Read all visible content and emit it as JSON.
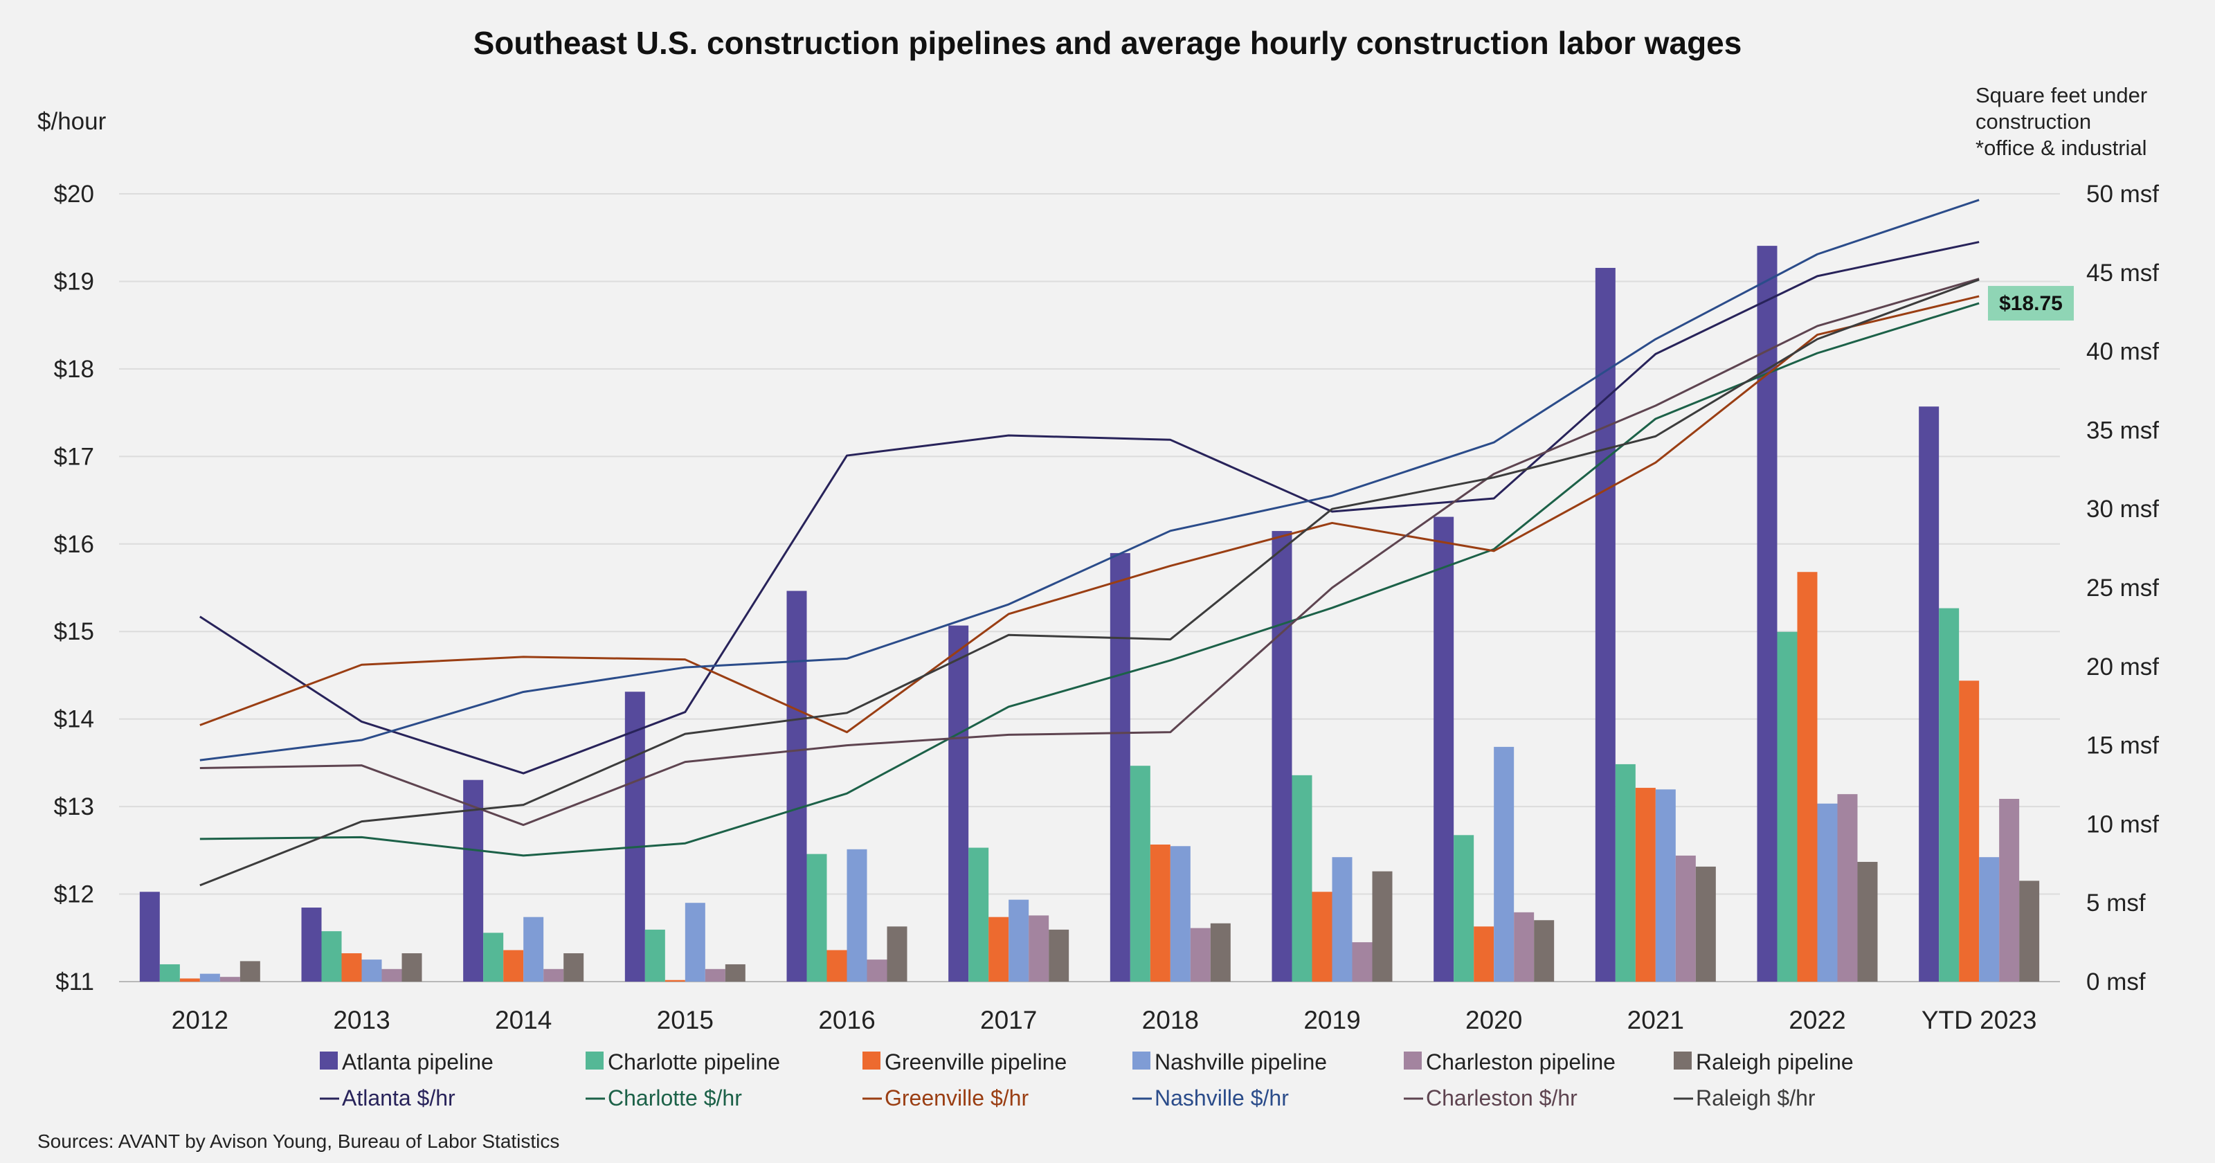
{
  "chart_data": {
    "type": "bar",
    "title": "Southeast U.S. construction pipelines and average hourly construction labor wages",
    "left_axis": {
      "label": "$/hour",
      "range": [
        11,
        20
      ],
      "ticks": [
        "$11",
        "$12",
        "$13",
        "$14",
        "$15",
        "$16",
        "$17",
        "$18",
        "$19",
        "$20"
      ]
    },
    "right_axis": {
      "label_lines": [
        "Square feet under",
        "construction",
        "*office & industrial"
      ],
      "range": [
        0,
        50
      ],
      "ticks": [
        "0 msf",
        "5 msf",
        "10 msf",
        "15 msf",
        "20 msf",
        "25 msf",
        "30 msf",
        "35 msf",
        "40 msf",
        "45 msf",
        "50 msf"
      ]
    },
    "categories": [
      "2012",
      "2013",
      "2014",
      "2015",
      "2016",
      "2017",
      "2018",
      "2019",
      "2020",
      "2021",
      "2022",
      "YTD 2023"
    ],
    "bar_series": [
      {
        "name": "Atlanta pipeline",
        "color": "#564a9c",
        "values": [
          5.7,
          4.7,
          12.8,
          18.4,
          24.8,
          22.6,
          27.2,
          28.6,
          29.5,
          45.3,
          46.7,
          36.5
        ]
      },
      {
        "name": "Charlotte pipeline",
        "color": "#55b896",
        "values": [
          1.1,
          3.2,
          3.1,
          3.3,
          8.1,
          8.5,
          13.7,
          13.1,
          9.3,
          13.8,
          22.2,
          23.7
        ]
      },
      {
        "name": "Greenville pipeline",
        "color": "#ed6a2f",
        "values": [
          0.2,
          1.8,
          2.0,
          0.1,
          2.0,
          4.1,
          8.7,
          5.7,
          3.5,
          12.3,
          26.0,
          19.1
        ]
      },
      {
        "name": "Nashville pipeline",
        "color": "#7f9cd5",
        "values": [
          0.5,
          1.4,
          4.1,
          5.0,
          8.4,
          5.2,
          8.6,
          7.9,
          14.9,
          12.2,
          11.3,
          7.9
        ]
      },
      {
        "name": "Charleston pipeline",
        "color": "#a3849f",
        "values": [
          0.3,
          0.8,
          0.8,
          0.8,
          1.4,
          4.2,
          3.4,
          2.5,
          4.4,
          8.0,
          11.9,
          11.6
        ]
      },
      {
        "name": "Raleigh pipeline",
        "color": "#7a706c",
        "values": [
          1.3,
          1.8,
          1.8,
          1.1,
          3.5,
          3.3,
          3.7,
          7.0,
          3.9,
          7.3,
          7.6,
          6.4
        ]
      }
    ],
    "line_series": [
      {
        "name": "Atlanta $/hr",
        "color": "#28235a",
        "values": [
          15.17,
          13.97,
          13.38,
          14.08,
          17.01,
          17.24,
          17.19,
          16.37,
          16.52,
          18.17,
          19.06,
          19.45
        ]
      },
      {
        "name": "Charlotte $/hr",
        "color": "#1c6148",
        "values": [
          12.63,
          12.65,
          12.44,
          12.58,
          13.15,
          14.14,
          14.67,
          15.27,
          15.94,
          17.43,
          18.18,
          18.75
        ]
      },
      {
        "name": "Greenville $/hr",
        "color": "#9a3e13",
        "values": [
          13.93,
          14.62,
          14.71,
          14.68,
          13.85,
          15.2,
          15.75,
          16.24,
          15.92,
          16.93,
          18.39,
          18.83
        ]
      },
      {
        "name": "Nashville $/hr",
        "color": "#2b4c8a",
        "values": [
          13.53,
          13.76,
          14.31,
          14.59,
          14.69,
          15.31,
          16.15,
          16.55,
          17.16,
          18.34,
          19.31,
          19.93
        ]
      },
      {
        "name": "Charleston $/hr",
        "color": "#5e4450",
        "values": [
          13.44,
          13.47,
          12.79,
          13.51,
          13.7,
          13.82,
          13.85,
          15.5,
          16.8,
          17.58,
          18.49,
          19.03
        ]
      },
      {
        "name": "Raleigh $/hr",
        "color": "#3c3c3c",
        "values": [
          12.1,
          12.83,
          13.02,
          13.83,
          14.07,
          14.96,
          14.91,
          16.4,
          16.76,
          17.23,
          18.34,
          19.02
        ]
      }
    ],
    "annotation": {
      "label": "$18.75",
      "value": 18.75,
      "bg_color": "#8fd5b5"
    },
    "legend_position": "bottom",
    "source": "Sources: AVANT by Avison Young, Bureau of Labor Statistics"
  }
}
